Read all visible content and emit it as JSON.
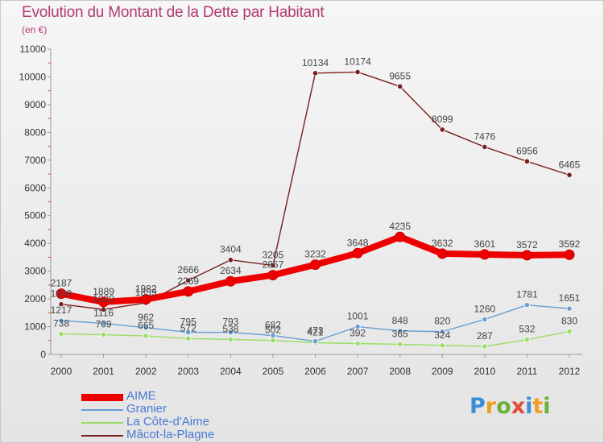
{
  "title": "Evolution du Montant de la Dette par Habitant",
  "subtitle": "(en €)",
  "logo": {
    "text": "Proxiti",
    "colors": [
      "#3a8fd8",
      "#f0a020",
      "#6ab03a",
      "#e24a3a",
      "#3a8fd8",
      "#f0a020",
      "#6ab03a"
    ]
  },
  "chart_data": {
    "type": "line",
    "x": [
      "2000",
      "2001",
      "2002",
      "2003",
      "2004",
      "2005",
      "2006",
      "2007",
      "2008",
      "2009",
      "2010",
      "2011",
      "2012"
    ],
    "yticks": [
      "0",
      "1000",
      "2000",
      "3000",
      "4000",
      "5000",
      "6000",
      "7000",
      "8000",
      "9000",
      "10000",
      "11000"
    ],
    "ylim": [
      0,
      11000
    ],
    "grid": false,
    "legend_position": "bottom-left",
    "series": [
      {
        "name": "AIME",
        "color": "#ee0000",
        "values": [
          2187,
          1889,
          1982,
          2269,
          2634,
          2857,
          3232,
          3648,
          4235,
          3632,
          3601,
          3572,
          3592
        ],
        "labels": [
          "2187",
          "1889",
          "1982",
          "2269",
          "2634",
          "2857",
          "3232",
          "3648",
          "4235",
          "3632",
          "3601",
          "3572",
          "3592"
        ]
      },
      {
        "name": "Granier",
        "color": "#6a9fd4",
        "values": [
          1217,
          1116,
          962,
          795,
          793,
          682,
          473,
          1001,
          848,
          820,
          1260,
          1781,
          1651
        ],
        "labels": [
          "1217",
          "1116",
          "962",
          "795",
          "793",
          "682",
          "473",
          "1001",
          "848",
          "820",
          "1260",
          "1781",
          "1651"
        ]
      },
      {
        "name": "La Côte-d'Aime",
        "color": "#99dd66",
        "values": [
          738,
          709,
          665,
          572,
          538,
          502,
          421,
          392,
          365,
          324,
          287,
          532,
          830
        ],
        "labels": [
          "738",
          "709",
          "665",
          "572",
          "538",
          "502",
          "421",
          "392",
          "365",
          "324",
          "287",
          "532",
          "830"
        ]
      },
      {
        "name": "Mâcot-la-Plagne",
        "color": "#7a1e1e",
        "values": [
          1809,
          1620,
          1859,
          2666,
          3404,
          3205,
          10134,
          10174,
          9655,
          8099,
          7476,
          6956,
          6465
        ],
        "labels": [
          "1809",
          "1620",
          "1859",
          "2666",
          "3404",
          "3205",
          "10134",
          "10174",
          "9655",
          "8099",
          "7476",
          "6956",
          "6465"
        ]
      }
    ]
  }
}
